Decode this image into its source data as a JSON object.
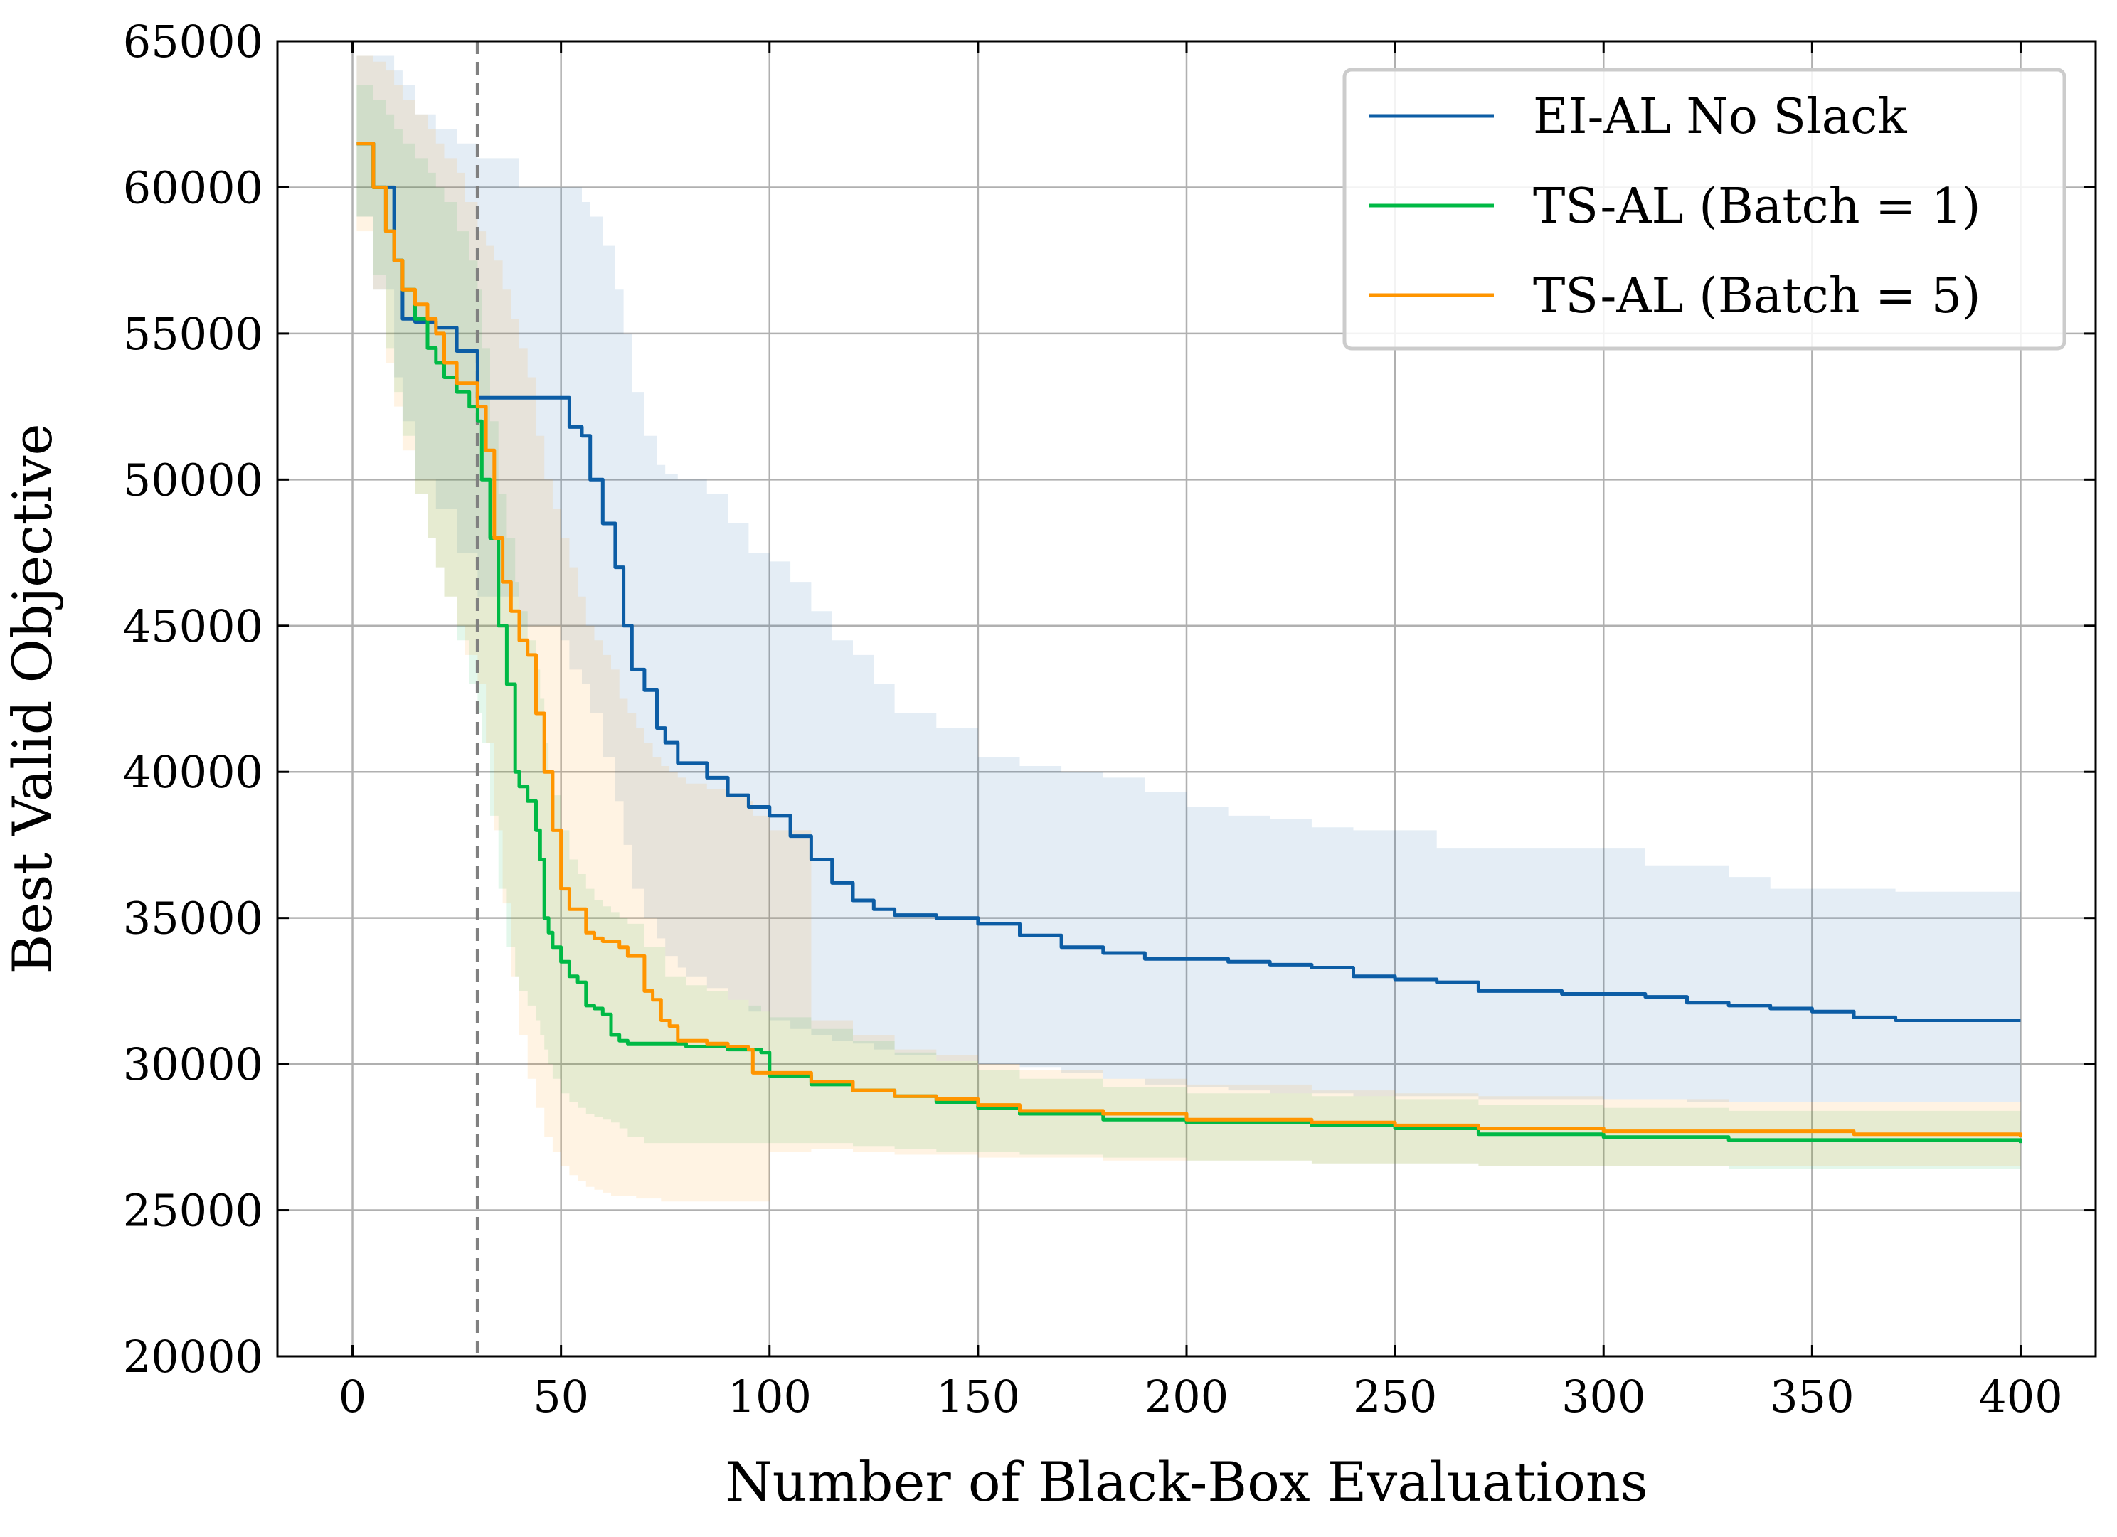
{
  "chart_data": {
    "type": "line",
    "title": "",
    "xlabel": "Number of Black-Box Evaluations",
    "ylabel": "Best Valid Objective",
    "xlim": [
      -18,
      418
    ],
    "ylim": [
      20000,
      65000
    ],
    "xticks": [
      0,
      50,
      100,
      150,
      200,
      250,
      300,
      350,
      400
    ],
    "yticks": [
      20000,
      25000,
      30000,
      35000,
      40000,
      45000,
      50000,
      55000,
      60000,
      65000
    ],
    "grid": true,
    "legend_position": "top-right",
    "vline": {
      "x": 30,
      "style": "dashed",
      "color": "#808080"
    },
    "series": [
      {
        "name": "EI-AL No Slack",
        "color": "#0c5da5",
        "x": [
          1,
          5,
          10,
          12,
          15,
          20,
          25,
          30,
          40,
          50,
          52,
          55,
          57,
          60,
          63,
          65,
          67,
          70,
          73,
          75,
          78,
          80,
          85,
          90,
          95,
          100,
          105,
          110,
          115,
          120,
          125,
          130,
          140,
          150,
          160,
          170,
          180,
          190,
          200,
          210,
          220,
          230,
          240,
          250,
          260,
          270,
          280,
          290,
          300,
          310,
          320,
          330,
          340,
          350,
          360,
          370,
          380,
          390,
          400
        ],
        "y": [
          61500,
          60000,
          57500,
          55500,
          55400,
          55200,
          54400,
          52800,
          52800,
          52800,
          51800,
          51500,
          50000,
          48500,
          47000,
          45000,
          43500,
          42800,
          41500,
          41000,
          40300,
          40300,
          39800,
          39200,
          38800,
          38500,
          37800,
          37000,
          36200,
          35600,
          35300,
          35100,
          35000,
          34800,
          34400,
          34000,
          33800,
          33600,
          33600,
          33500,
          33400,
          33300,
          33000,
          32900,
          32800,
          32500,
          32500,
          32400,
          32400,
          32300,
          32100,
          32000,
          31900,
          31800,
          31600,
          31500,
          31500,
          31500,
          31500
        ],
        "band_upper": [
          64500,
          64500,
          64000,
          63500,
          62500,
          62000,
          61500,
          61000,
          60000,
          60000,
          60000,
          59500,
          59000,
          58000,
          56500,
          55000,
          53000,
          51500,
          50500,
          50200,
          50000,
          50000,
          49500,
          48500,
          47500,
          47200,
          46500,
          45500,
          44500,
          44000,
          43000,
          42000,
          41500,
          40500,
          40200,
          40000,
          39800,
          39300,
          38800,
          38500,
          38400,
          38100,
          38000,
          38000,
          37400,
          37400,
          37400,
          37400,
          37400,
          36800,
          36800,
          36400,
          36000,
          36000,
          36000,
          35900,
          35900,
          35900,
          35900
        ],
        "band_lower": [
          59000,
          56500,
          53500,
          52000,
          50000,
          49000,
          47500,
          46000,
          45000,
          44500,
          43500,
          43000,
          42000,
          40500,
          39000,
          37500,
          36000,
          35000,
          34300,
          33700,
          33300,
          33000,
          32600,
          32200,
          31800,
          31500,
          31200,
          31000,
          30800,
          30700,
          30500,
          30300,
          30100,
          30000,
          29900,
          29700,
          29500,
          29300,
          29200,
          29100,
          29000,
          29000,
          28900,
          28900,
          28900,
          28800,
          28800,
          28800,
          28800,
          28800,
          28700,
          28700,
          28700,
          28700,
          28700,
          28700,
          28700,
          28700,
          28700
        ]
      },
      {
        "name": "TS-AL (Batch = 1)",
        "color": "#00b945",
        "x": [
          1,
          5,
          8,
          10,
          12,
          15,
          18,
          20,
          22,
          25,
          28,
          30,
          31,
          33,
          35,
          37,
          39,
          40,
          42,
          44,
          45,
          46,
          47,
          48,
          50,
          52,
          54,
          56,
          58,
          60,
          62,
          64,
          66,
          70,
          75,
          80,
          85,
          90,
          95,
          98,
          100,
          110,
          120,
          130,
          140,
          150,
          160,
          180,
          200,
          230,
          250,
          270,
          300,
          330,
          360,
          400
        ],
        "y": [
          61500,
          60000,
          58500,
          57500,
          56500,
          55500,
          54500,
          54000,
          53500,
          53000,
          52500,
          52000,
          50000,
          48000,
          45000,
          43000,
          40000,
          39500,
          39000,
          38000,
          37000,
          35000,
          34500,
          34000,
          33500,
          33000,
          32800,
          32000,
          31900,
          31700,
          31000,
          30800,
          30700,
          30700,
          30700,
          30600,
          30600,
          30500,
          30500,
          30400,
          29600,
          29300,
          29100,
          28900,
          28700,
          28500,
          28300,
          28100,
          28000,
          27900,
          27800,
          27600,
          27500,
          27400,
          27400,
          27300
        ],
        "band_upper": [
          63500,
          63000,
          62500,
          62000,
          61500,
          61000,
          60500,
          60000,
          59500,
          58500,
          57500,
          56500,
          54500,
          52000,
          49500,
          48000,
          46500,
          45500,
          44500,
          43500,
          42500,
          41000,
          40000,
          39200,
          38000,
          37000,
          36500,
          36000,
          35600,
          35400,
          35200,
          35000,
          34800,
          34000,
          33000,
          32700,
          32500,
          32200,
          32000,
          31800,
          31600,
          31200,
          30800,
          30400,
          30100,
          29800,
          29500,
          29200,
          29000,
          28900,
          28800,
          28600,
          28500,
          28400,
          28400,
          28300
        ],
        "band_lower": [
          59000,
          57000,
          54500,
          53000,
          51500,
          49500,
          48000,
          47000,
          46000,
          44500,
          43000,
          42000,
          41000,
          38500,
          36000,
          34000,
          33000,
          32500,
          32000,
          31500,
          31000,
          30500,
          30000,
          29500,
          29000,
          28700,
          28500,
          28300,
          28200,
          28100,
          28000,
          27800,
          27500,
          27300,
          27300,
          27300,
          27300,
          27300,
          27300,
          27300,
          27300,
          27300,
          27200,
          27100,
          27000,
          27000,
          26900,
          26800,
          26700,
          26600,
          26600,
          26500,
          26500,
          26400,
          26400,
          26300
        ]
      },
      {
        "name": "TS-AL (Batch = 5)",
        "color": "#ff9500",
        "x": [
          1,
          5,
          8,
          10,
          12,
          15,
          18,
          20,
          22,
          25,
          27,
          30,
          32,
          34,
          36,
          38,
          40,
          42,
          44,
          46,
          48,
          50,
          52,
          54,
          56,
          58,
          60,
          62,
          64,
          66,
          68,
          70,
          72,
          74,
          76,
          78,
          80,
          85,
          90,
          95,
          96,
          100,
          110,
          120,
          130,
          140,
          150,
          160,
          180,
          200,
          230,
          250,
          270,
          300,
          330,
          360,
          400
        ],
        "y": [
          61500,
          60000,
          58500,
          57500,
          56500,
          56000,
          55500,
          55000,
          54000,
          53300,
          53300,
          52500,
          51000,
          48000,
          46500,
          45500,
          44500,
          44000,
          42000,
          40000,
          38000,
          36000,
          35300,
          35300,
          34500,
          34300,
          34200,
          34200,
          34000,
          33700,
          33700,
          32500,
          32200,
          31500,
          31300,
          30800,
          30800,
          30700,
          30600,
          30500,
          29700,
          29700,
          29400,
          29100,
          28900,
          28800,
          28600,
          28400,
          28300,
          28100,
          28000,
          27900,
          27800,
          27700,
          27700,
          27600,
          27500
        ],
        "band_upper": [
          64500,
          64300,
          64000,
          63500,
          63000,
          62500,
          62000,
          61500,
          61000,
          60500,
          59500,
          58500,
          58000,
          57500,
          56500,
          55500,
          54500,
          53500,
          51500,
          50000,
          49000,
          48000,
          47000,
          46000,
          45000,
          44500,
          44000,
          43500,
          42500,
          42000,
          41500,
          41000,
          40500,
          40200,
          40000,
          39800,
          39600,
          39400,
          39200,
          39000,
          38500,
          38000,
          31500,
          31000,
          30500,
          30300,
          30000,
          29800,
          29500,
          29300,
          29100,
          29000,
          28900,
          28800,
          28700,
          28700,
          28600
        ],
        "band_lower": [
          58500,
          56500,
          54000,
          52500,
          51000,
          49500,
          48000,
          47000,
          46000,
          45000,
          44000,
          43000,
          41000,
          38000,
          35500,
          33000,
          31000,
          29500,
          28500,
          27500,
          27000,
          26500,
          26200,
          26000,
          25800,
          25700,
          25600,
          25500,
          25500,
          25500,
          25400,
          25400,
          25400,
          25300,
          25300,
          25300,
          25300,
          25300,
          25300,
          25300,
          25300,
          27000,
          27100,
          27000,
          26900,
          26900,
          26800,
          26800,
          26700,
          26700,
          26600,
          26600,
          26500,
          26500,
          26500,
          26500,
          26500
        ]
      }
    ]
  }
}
